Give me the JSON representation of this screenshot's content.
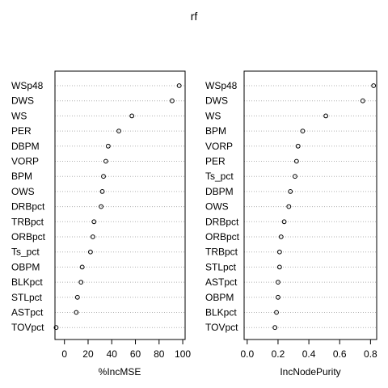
{
  "title": "rf",
  "chart_data": [
    {
      "type": "scatter",
      "xlabel": "%IncMSE",
      "xlim": [
        -8,
        102
      ],
      "xticks": [
        0,
        20,
        40,
        60,
        80,
        100
      ],
      "grid": "dotted horizontal lines",
      "points": [
        {
          "label": "WSp48",
          "x": 97
        },
        {
          "label": "DWS",
          "x": 91
        },
        {
          "label": "WS",
          "x": 57
        },
        {
          "label": "PER",
          "x": 46
        },
        {
          "label": "DBPM",
          "x": 37
        },
        {
          "label": "VORP",
          "x": 35
        },
        {
          "label": "BPM",
          "x": 33
        },
        {
          "label": "OWS",
          "x": 32
        },
        {
          "label": "DRBpct",
          "x": 31
        },
        {
          "label": "TRBpct",
          "x": 25
        },
        {
          "label": "ORBpct",
          "x": 24
        },
        {
          "label": "Ts_pct",
          "x": 22
        },
        {
          "label": "OBPM",
          "x": 15
        },
        {
          "label": "BLKpct",
          "x": 14
        },
        {
          "label": "STLpct",
          "x": 11
        },
        {
          "label": "ASTpct",
          "x": 10
        },
        {
          "label": "TOVpct",
          "x": -7
        }
      ]
    },
    {
      "type": "scatter",
      "xlabel": "IncNodePurity",
      "xlim": [
        -0.02,
        0.84
      ],
      "xticks": [
        0.0,
        0.2,
        0.4,
        0.6,
        0.8
      ],
      "grid": "dotted horizontal lines",
      "points": [
        {
          "label": "WSp48",
          "x": 0.82
        },
        {
          "label": "DWS",
          "x": 0.75
        },
        {
          "label": "WS",
          "x": 0.51
        },
        {
          "label": "BPM",
          "x": 0.36
        },
        {
          "label": "VORP",
          "x": 0.33
        },
        {
          "label": "PER",
          "x": 0.32
        },
        {
          "label": "Ts_pct",
          "x": 0.31
        },
        {
          "label": "DBPM",
          "x": 0.28
        },
        {
          "label": "OWS",
          "x": 0.27
        },
        {
          "label": "DRBpct",
          "x": 0.24
        },
        {
          "label": "ORBpct",
          "x": 0.22
        },
        {
          "label": "TRBpct",
          "x": 0.21
        },
        {
          "label": "STLpct",
          "x": 0.21
        },
        {
          "label": "ASTpct",
          "x": 0.2
        },
        {
          "label": "OBPM",
          "x": 0.2
        },
        {
          "label": "BLKpct",
          "x": 0.19
        },
        {
          "label": "TOVpct",
          "x": 0.18
        }
      ]
    }
  ]
}
